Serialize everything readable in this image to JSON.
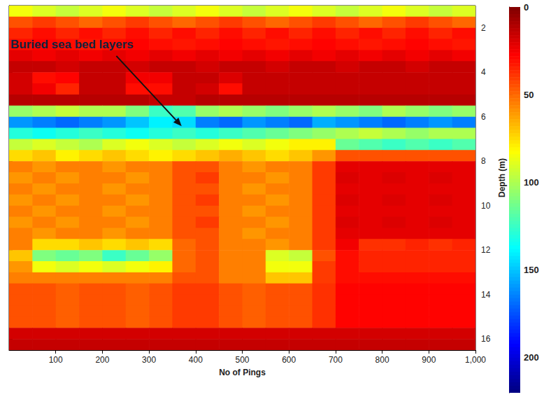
{
  "chart_data": {
    "type": "heatmap",
    "annotation": "Buried sea bed layers",
    "x_label": "No of Pings",
    "y_label": "Depth (m)",
    "xlim": [
      0,
      1000
    ],
    "xticks": [
      100,
      200,
      300,
      400,
      500,
      600,
      700,
      800,
      900,
      1000
    ],
    "ylim": [
      1,
      16.5
    ],
    "yticks": [
      2,
      4,
      6,
      8,
      10,
      12,
      14,
      16
    ],
    "x": [
      25,
      75,
      125,
      175,
      225,
      275,
      325,
      375,
      425,
      475,
      525,
      575,
      625,
      675,
      725,
      775,
      825,
      875,
      925,
      975
    ],
    "y": [
      1.25,
      1.75,
      2.25,
      2.75,
      3.25,
      3.75,
      4.25,
      4.75,
      5.25,
      5.75,
      6.25,
      6.75,
      7.25,
      7.75,
      8.25,
      8.75,
      9.25,
      9.75,
      10.25,
      10.75,
      11.25,
      11.75,
      12.25,
      12.75,
      13.25,
      13.75,
      14.25,
      14.75,
      15.25,
      15.75,
      16.25
    ],
    "cells": [
      [
        85,
        90,
        95,
        90,
        85,
        90,
        95,
        90,
        85,
        90,
        95,
        90,
        85,
        90,
        95,
        90,
        85,
        90,
        95,
        90
      ],
      [
        45,
        40,
        45,
        50,
        45,
        40,
        45,
        50,
        45,
        40,
        45,
        50,
        45,
        40,
        45,
        50,
        45,
        40,
        45,
        50
      ],
      [
        35,
        30,
        35,
        30,
        35,
        30,
        35,
        30,
        35,
        30,
        35,
        30,
        35,
        30,
        35,
        30,
        35,
        30,
        35,
        30
      ],
      [
        30,
        28,
        30,
        32,
        30,
        28,
        30,
        32,
        30,
        28,
        30,
        32,
        30,
        28,
        30,
        32,
        30,
        28,
        30,
        32
      ],
      [
        22,
        25,
        22,
        25,
        22,
        25,
        22,
        25,
        22,
        25,
        22,
        25,
        22,
        25,
        22,
        25,
        22,
        25,
        22,
        25
      ],
      [
        15,
        15,
        18,
        15,
        15,
        18,
        15,
        15,
        18,
        15,
        15,
        18,
        15,
        15,
        18,
        15,
        15,
        18,
        15,
        15
      ],
      [
        18,
        30,
        28,
        15,
        15,
        25,
        25,
        15,
        15,
        20,
        15,
        15,
        15,
        15,
        15,
        15,
        15,
        15,
        15,
        15
      ],
      [
        18,
        25,
        35,
        15,
        15,
        30,
        30,
        15,
        18,
        30,
        15,
        15,
        15,
        15,
        15,
        15,
        15,
        15,
        15,
        15
      ],
      [
        12,
        12,
        12,
        12,
        12,
        12,
        15,
        15,
        12,
        12,
        12,
        12,
        12,
        12,
        12,
        12,
        12,
        12,
        12,
        12
      ],
      [
        105,
        100,
        95,
        100,
        100,
        110,
        125,
        120,
        105,
        100,
        105,
        110,
        105,
        100,
        105,
        110,
        100,
        105,
        110,
        105
      ],
      [
        160,
        165,
        170,
        165,
        160,
        150,
        140,
        145,
        165,
        170,
        160,
        165,
        170,
        155,
        160,
        165,
        170,
        165,
        160,
        165
      ],
      [
        130,
        135,
        130,
        125,
        130,
        135,
        130,
        125,
        130,
        125,
        120,
        115,
        110,
        105,
        100,
        95,
        100,
        105,
        100,
        100
      ],
      [
        95,
        90,
        95,
        100,
        90,
        85,
        90,
        95,
        90,
        85,
        90,
        85,
        80,
        80,
        115,
        120,
        125,
        120,
        125,
        120
      ],
      [
        75,
        70,
        80,
        75,
        70,
        75,
        80,
        75,
        70,
        65,
        70,
        75,
        70,
        60,
        45,
        45,
        45,
        45,
        45,
        45
      ],
      [
        55,
        60,
        55,
        55,
        60,
        55,
        55,
        45,
        45,
        55,
        60,
        55,
        55,
        40,
        22,
        22,
        22,
        22,
        22,
        22
      ],
      [
        60,
        55,
        60,
        55,
        55,
        60,
        55,
        45,
        40,
        55,
        55,
        60,
        55,
        40,
        20,
        22,
        20,
        22,
        20,
        22
      ],
      [
        55,
        60,
        55,
        55,
        60,
        55,
        55,
        45,
        45,
        55,
        60,
        55,
        55,
        40,
        22,
        22,
        22,
        22,
        22,
        22
      ],
      [
        60,
        55,
        60,
        55,
        55,
        60,
        55,
        45,
        40,
        55,
        55,
        60,
        55,
        40,
        20,
        22,
        20,
        22,
        20,
        22
      ],
      [
        55,
        60,
        55,
        55,
        60,
        55,
        55,
        45,
        45,
        55,
        60,
        55,
        55,
        40,
        22,
        22,
        22,
        22,
        22,
        22
      ],
      [
        60,
        55,
        60,
        55,
        55,
        60,
        55,
        45,
        40,
        55,
        55,
        60,
        55,
        40,
        20,
        22,
        20,
        22,
        20,
        22
      ],
      [
        55,
        60,
        55,
        55,
        60,
        55,
        55,
        45,
        45,
        55,
        60,
        55,
        55,
        40,
        22,
        22,
        22,
        22,
        22,
        22
      ],
      [
        55,
        75,
        75,
        70,
        75,
        70,
        75,
        50,
        45,
        55,
        55,
        60,
        55,
        40,
        25,
        38,
        38,
        35,
        38,
        35
      ],
      [
        70,
        110,
        115,
        110,
        125,
        115,
        105,
        50,
        45,
        55,
        55,
        90,
        95,
        45,
        30,
        35,
        35,
        35,
        35,
        35
      ],
      [
        60,
        85,
        90,
        85,
        90,
        85,
        80,
        50,
        45,
        55,
        55,
        85,
        85,
        40,
        30,
        35,
        35,
        35,
        35,
        35
      ],
      [
        55,
        55,
        55,
        55,
        55,
        55,
        55,
        45,
        45,
        55,
        55,
        70,
        70,
        40,
        30,
        30,
        30,
        30,
        30,
        30
      ],
      [
        45,
        45,
        48,
        45,
        45,
        48,
        45,
        40,
        40,
        45,
        48,
        45,
        45,
        38,
        28,
        28,
        28,
        28,
        28,
        28
      ],
      [
        45,
        45,
        48,
        45,
        45,
        48,
        45,
        40,
        40,
        45,
        48,
        45,
        45,
        38,
        28,
        28,
        28,
        28,
        28,
        28
      ],
      [
        45,
        45,
        48,
        45,
        45,
        48,
        45,
        40,
        40,
        45,
        48,
        45,
        45,
        38,
        28,
        28,
        28,
        28,
        28,
        28
      ],
      [
        45,
        45,
        48,
        45,
        45,
        48,
        45,
        40,
        40,
        45,
        48,
        45,
        45,
        38,
        28,
        28,
        28,
        28,
        28,
        28
      ],
      [
        18,
        18,
        18,
        18,
        18,
        18,
        18,
        18,
        18,
        18,
        18,
        18,
        18,
        18,
        18,
        18,
        18,
        18,
        18,
        18
      ],
      [
        15,
        15,
        15,
        15,
        15,
        15,
        15,
        15,
        15,
        15,
        15,
        15,
        15,
        15,
        15,
        15,
        15,
        15,
        15,
        15
      ]
    ],
    "colorbar": {
      "range": [
        0,
        220
      ],
      "ticks": [
        0,
        50,
        100,
        150,
        200
      ]
    }
  }
}
